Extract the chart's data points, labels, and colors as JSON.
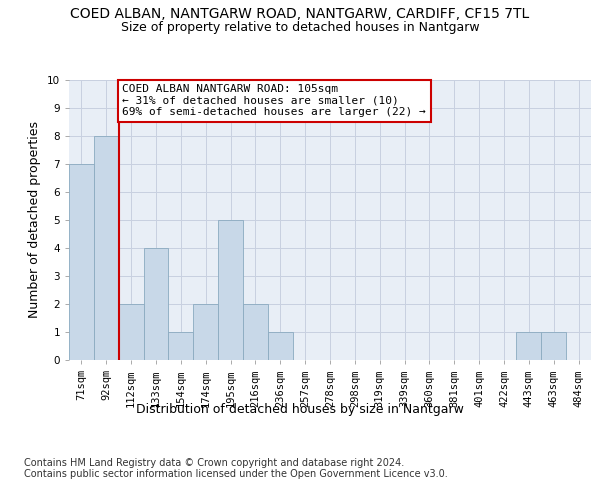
{
  "title": "COED ALBAN, NANTGARW ROAD, NANTGARW, CARDIFF, CF15 7TL",
  "subtitle": "Size of property relative to detached houses in Nantgarw",
  "xlabel": "Distribution of detached houses by size in Nantgarw",
  "ylabel": "Number of detached properties",
  "bin_labels": [
    "71sqm",
    "92sqm",
    "112sqm",
    "133sqm",
    "154sqm",
    "174sqm",
    "195sqm",
    "216sqm",
    "236sqm",
    "257sqm",
    "278sqm",
    "298sqm",
    "319sqm",
    "339sqm",
    "360sqm",
    "381sqm",
    "401sqm",
    "422sqm",
    "443sqm",
    "463sqm",
    "484sqm"
  ],
  "bar_heights": [
    7,
    8,
    2,
    4,
    1,
    2,
    5,
    2,
    1,
    0,
    0,
    0,
    0,
    0,
    0,
    0,
    0,
    0,
    1,
    1,
    0
  ],
  "bar_color": "#c8d8e8",
  "bar_edge_color": "#8aaac0",
  "grid_color": "#c8d0e0",
  "bg_color": "#e8eef6",
  "annotation_text": "COED ALBAN NANTGARW ROAD: 105sqm\n← 31% of detached houses are smaller (10)\n69% of semi-detached houses are larger (22) →",
  "annotation_box_color": "#ffffff",
  "annotation_box_edge_color": "#cc0000",
  "vline_color": "#cc0000",
  "ylim": [
    0,
    10
  ],
  "yticks": [
    0,
    1,
    2,
    3,
    4,
    5,
    6,
    7,
    8,
    9,
    10
  ],
  "footer_text": "Contains HM Land Registry data © Crown copyright and database right 2024.\nContains public sector information licensed under the Open Government Licence v3.0.",
  "title_fontsize": 10,
  "subtitle_fontsize": 9,
  "ylabel_fontsize": 9,
  "xlabel_fontsize": 9,
  "tick_fontsize": 7.5,
  "annotation_fontsize": 8,
  "footer_fontsize": 7
}
